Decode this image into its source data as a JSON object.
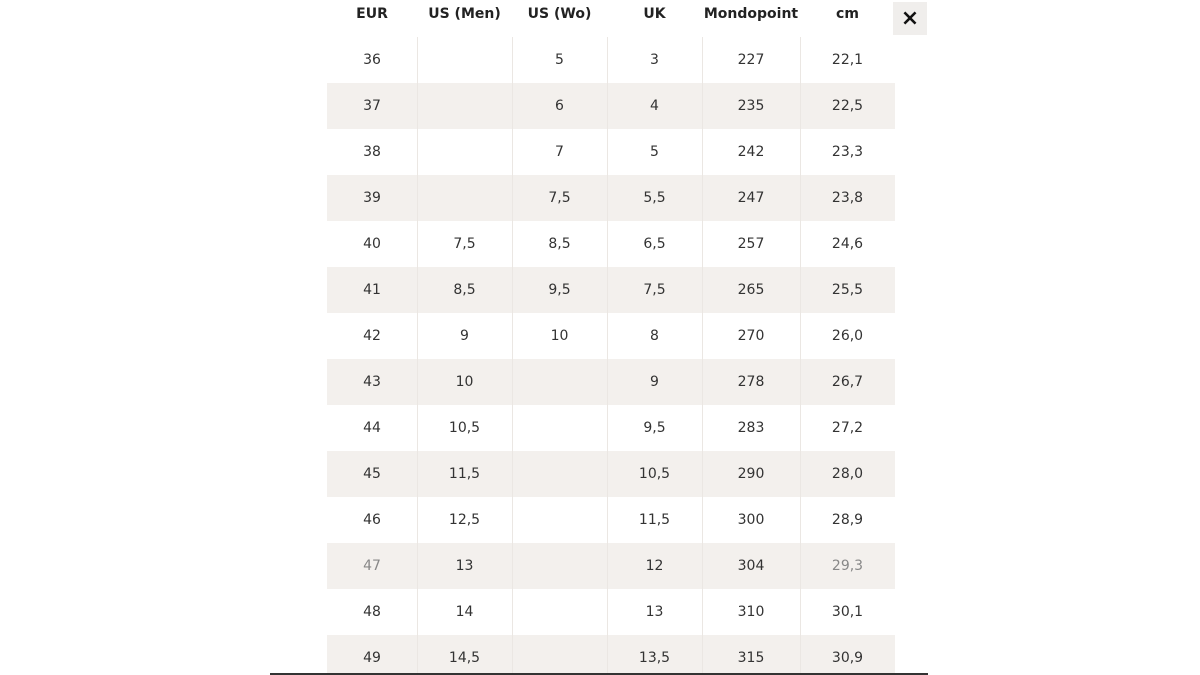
{
  "table": {
    "header": [
      "EUR",
      "US (Men)",
      "US (Wo)",
      "UK",
      "Mondopoint",
      "cm"
    ],
    "rows": [
      [
        "36",
        null,
        "5",
        "3",
        "227",
        "22,1"
      ],
      [
        "37",
        null,
        "6",
        "4",
        "235",
        "22,5"
      ],
      [
        "38",
        null,
        "7",
        "5",
        "242",
        "23,3"
      ],
      [
        "39",
        null,
        "7,5",
        "5,5",
        "247",
        "23,8"
      ],
      [
        "40",
        "7,5",
        "8,5",
        "6,5",
        "257",
        "24,6"
      ],
      [
        "41",
        "8,5",
        "9,5",
        "7,5",
        "265",
        "25,5"
      ],
      [
        "42",
        "9",
        "10",
        "8",
        "270",
        "26,0"
      ],
      [
        "43",
        "10",
        null,
        "9",
        "278",
        "26,7"
      ],
      [
        "44",
        "10,5",
        null,
        "9,5",
        "283",
        "27,2"
      ],
      [
        "45",
        "11,5",
        null,
        "10,5",
        "290",
        "28,0"
      ],
      [
        "46",
        "12,5",
        null,
        "11,5",
        "300",
        "28,9"
      ],
      [
        "47",
        "13",
        null,
        "12",
        "304",
        "29,3"
      ],
      [
        "48",
        "14",
        null,
        "13",
        "310",
        "30,1"
      ],
      [
        "49",
        "14,5",
        null,
        "13,5",
        "315",
        "30,9"
      ]
    ]
  },
  "close_button": "×"
}
